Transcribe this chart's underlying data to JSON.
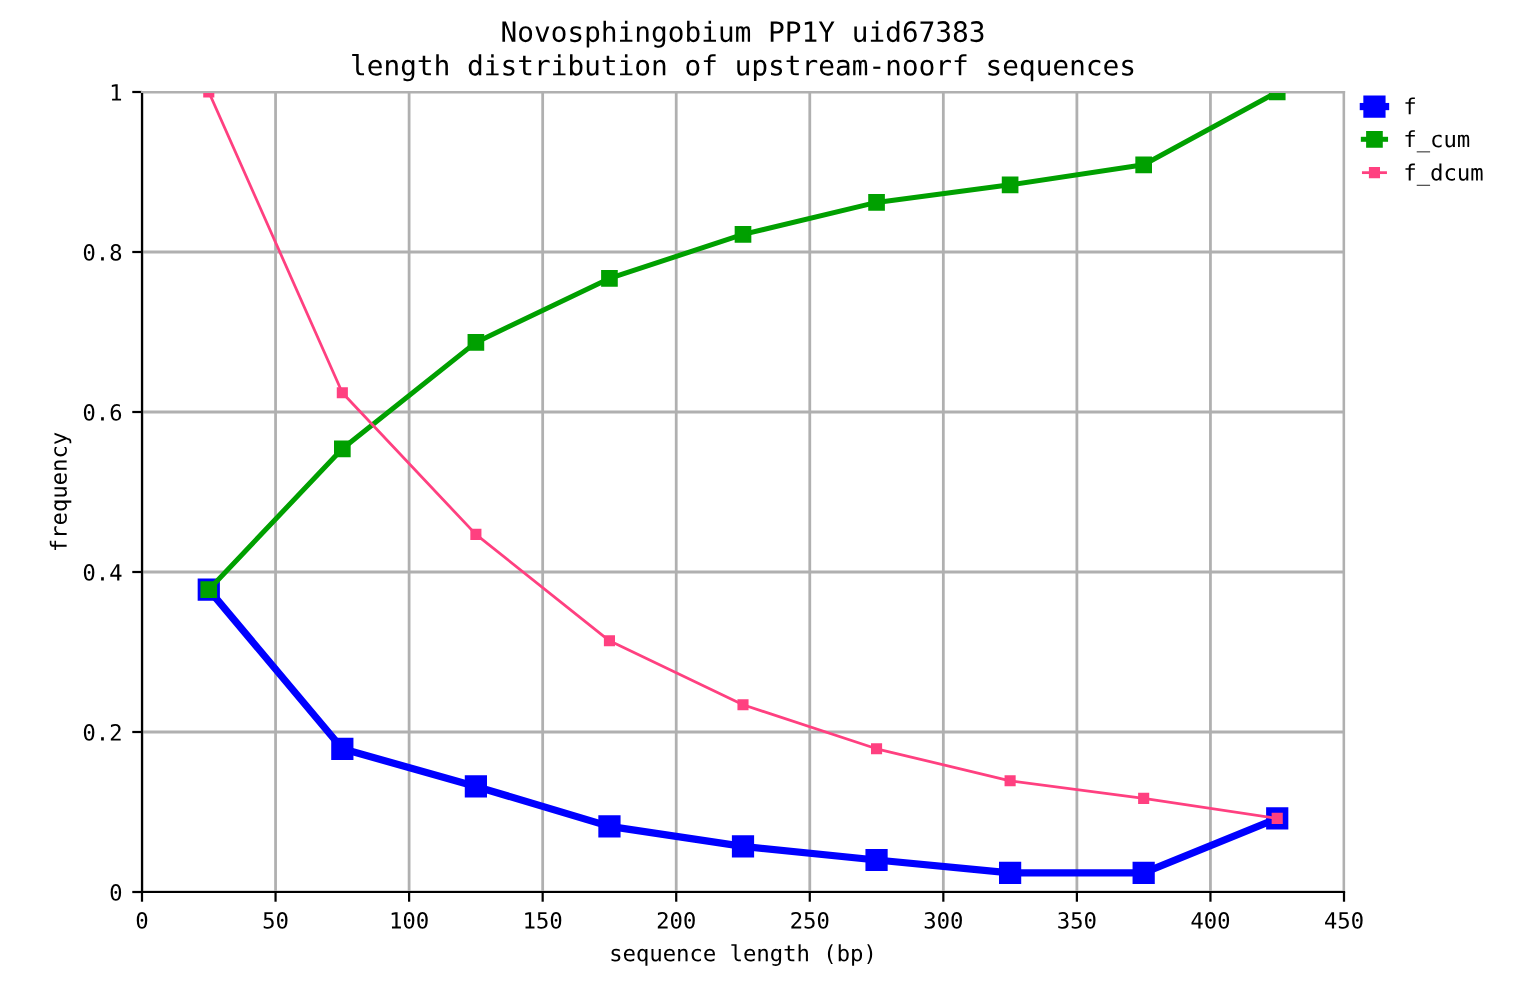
{
  "chart_data": {
    "type": "line",
    "title": "Novosphingobium PP1Y uid67383\nlength distribution of upstream-noorf sequences",
    "xlabel": "sequence length (bp)",
    "ylabel": "frequency",
    "x": [
      25,
      75,
      125,
      175,
      225,
      275,
      325,
      375,
      425
    ],
    "series": [
      {
        "name": "f",
        "color": "#0000ff",
        "values": [
          0.378,
          0.179,
          0.132,
          0.082,
          0.057,
          0.04,
          0.024,
          0.024,
          0.092
        ]
      },
      {
        "name": "f_cum",
        "color": "#00a000",
        "values": [
          0.378,
          0.554,
          0.687,
          0.767,
          0.822,
          0.862,
          0.884,
          0.909,
          1.0
        ]
      },
      {
        "name": "f_dcum",
        "color": "#ff4080",
        "values": [
          1.0,
          0.624,
          0.447,
          0.314,
          0.234,
          0.179,
          0.139,
          0.117,
          0.092
        ]
      }
    ],
    "xlim": [
      0,
      450
    ],
    "ylim": [
      0,
      1
    ],
    "xticks": [
      0,
      50,
      100,
      150,
      200,
      250,
      300,
      350,
      400,
      450
    ],
    "yticks": [
      0,
      {
        "value": 0.2,
        "label": "0.2"
      },
      {
        "value": 0.4,
        "label": "0.4"
      },
      {
        "value": 0.6,
        "label": "0.6"
      },
      {
        "value": 0.8,
        "label": "0.8"
      },
      1
    ],
    "grid": true,
    "legend": "top right",
    "marker": "square",
    "line_style": "solid"
  }
}
